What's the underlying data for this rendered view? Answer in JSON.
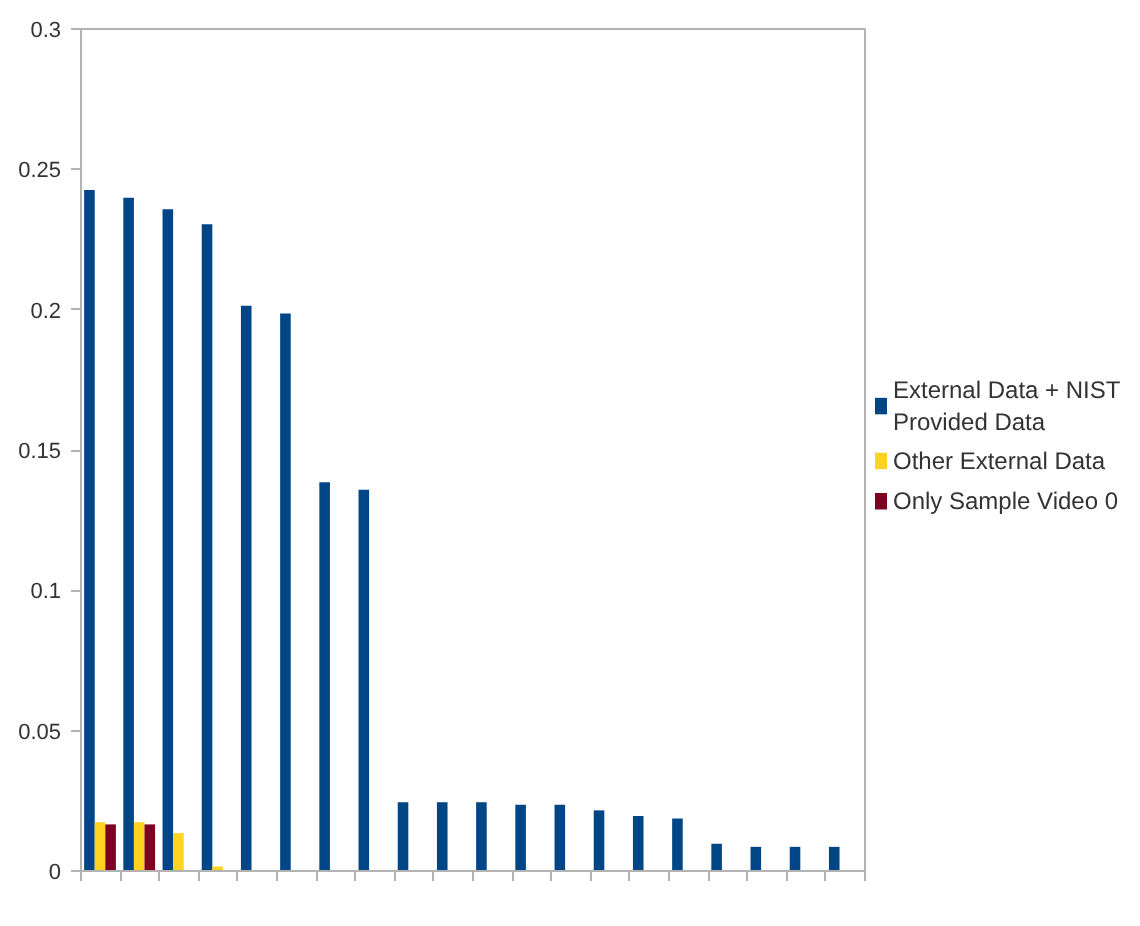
{
  "chart_data": {
    "type": "bar",
    "categories": [
      null,
      null,
      null,
      null,
      null,
      null,
      null,
      null,
      null,
      null,
      null,
      null,
      null,
      null,
      null,
      null,
      null,
      null,
      null,
      null
    ],
    "series": [
      {
        "name": "External Data + NIST Provided Data",
        "color": "#004586",
        "values": [
          0.2426,
          0.2399,
          0.2358,
          0.2304,
          0.2014,
          0.1986,
          0.1385,
          0.1358,
          0.0245,
          0.0245,
          0.0245,
          0.0236,
          0.0236,
          0.0216,
          0.0196,
          0.0187,
          0.0097,
          0.0086,
          0.0086,
          0.0086
        ]
      },
      {
        "name": "Other External Data",
        "color": "#ffd320",
        "values": [
          0.0174,
          0.0174,
          0.0135,
          0.0016,
          null,
          null,
          null,
          null,
          null,
          null,
          null,
          null,
          null,
          null,
          null,
          null,
          null,
          null,
          null,
          null
        ]
      },
      {
        "name": "Only Sample Video 0",
        "color": "#7e0021",
        "values": [
          0.0166,
          0.0166,
          null,
          null,
          null,
          null,
          null,
          null,
          null,
          null,
          null,
          null,
          null,
          null,
          null,
          null,
          null,
          null,
          null,
          null
        ]
      }
    ],
    "ylim": [
      0,
      0.3
    ],
    "yticks": [
      0,
      0.05,
      0.1,
      0.15,
      0.2,
      0.25,
      0.3
    ],
    "grid": false,
    "legend": "right"
  }
}
